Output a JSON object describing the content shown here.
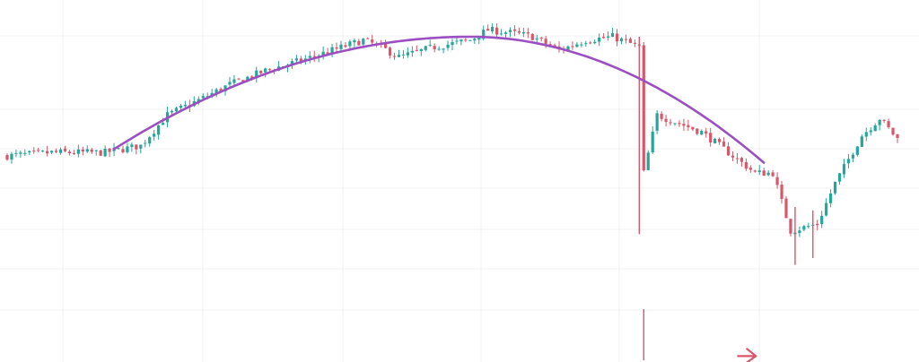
{
  "chart_data": {
    "type": "candlestick",
    "title": "",
    "xlabel": "",
    "ylabel": "",
    "x_range": [
      0,
      200
    ],
    "y_range": [
      0,
      100
    ],
    "grid": true,
    "legend": "none",
    "colors": {
      "up": "#26a69a",
      "down": "#d9576a",
      "arc": "#9b4fc1",
      "arrow": "#d9576a",
      "grid": "#f0f0f3"
    },
    "anchors": [
      [
        0,
        60
      ],
      [
        10,
        61
      ],
      [
        22,
        61
      ],
      [
        30,
        63
      ],
      [
        36,
        72
      ],
      [
        44,
        77
      ],
      [
        50,
        81
      ],
      [
        58,
        85
      ],
      [
        66,
        88
      ],
      [
        73,
        91
      ],
      [
        80,
        94
      ],
      [
        84,
        92
      ],
      [
        88,
        89
      ],
      [
        96,
        92
      ],
      [
        104,
        94
      ],
      [
        108,
        97
      ],
      [
        114,
        96
      ],
      [
        118,
        95
      ],
      [
        124,
        91
      ],
      [
        130,
        94
      ],
      [
        136,
        95
      ],
      [
        142,
        92
      ],
      [
        143,
        55
      ],
      [
        146,
        72
      ],
      [
        156,
        67
      ],
      [
        164,
        59
      ],
      [
        168,
        55
      ],
      [
        172,
        55
      ],
      [
        176,
        38
      ],
      [
        182,
        40
      ],
      [
        186,
        52
      ],
      [
        192,
        66
      ],
      [
        196,
        71
      ],
      [
        200,
        65
      ]
    ],
    "spikes": [
      {
        "x": 142,
        "low": 37,
        "high": 95
      },
      {
        "x": 143,
        "low": 0,
        "high": 15
      },
      {
        "x": 177,
        "low": 28,
        "high": 45
      },
      {
        "x": 181,
        "low": 30,
        "high": 44
      }
    ],
    "arc": {
      "x_start": 24,
      "x_peak": 104,
      "x_end": 170,
      "y_start": 62,
      "y_peak": 95,
      "y_end": 58
    },
    "arrow": {
      "x": 167,
      "y": 2
    }
  }
}
